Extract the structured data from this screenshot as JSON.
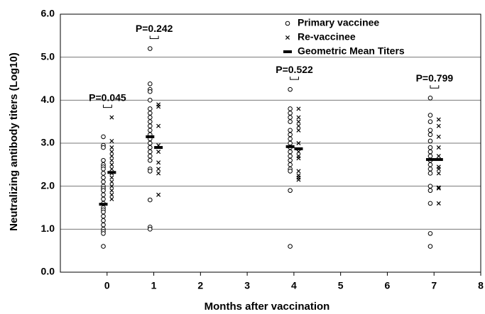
{
  "chart_data": {
    "type": "scatter",
    "xlabel": "Months after vaccination",
    "ylabel": "Neutralizing antibody titers (Log10)",
    "xlim": [
      -1,
      8
    ],
    "ylim": [
      0,
      6
    ],
    "xticks": [
      0,
      1,
      2,
      3,
      4,
      5,
      6,
      7,
      8
    ],
    "yticks": [
      {
        "value": 0,
        "label": "0.0"
      },
      {
        "value": 1,
        "label": "1.0"
      },
      {
        "value": 2,
        "label": "2.0"
      },
      {
        "value": 3,
        "label": "3.0"
      },
      {
        "value": 4,
        "label": "4.0"
      },
      {
        "value": 5,
        "label": "5.0"
      },
      {
        "value": 6,
        "label": "6.0"
      }
    ],
    "grid": true,
    "legend": "top-right",
    "series": [
      {
        "name": "Primary vaccinee",
        "marker": "circle",
        "color": "#000000",
        "groups": [
          {
            "x": -0.08,
            "values": [
              3.15,
              2.95,
              2.9,
              2.6,
              2.5,
              2.45,
              2.4,
              2.3,
              2.2,
              2.1,
              2.0,
              1.95,
              1.9,
              1.8,
              1.7,
              1.6,
              1.5,
              1.45,
              1.4,
              1.3,
              1.2,
              1.1,
              1.0,
              0.95,
              0.9,
              0.6
            ]
          },
          {
            "x": 0.92,
            "values": [
              5.2,
              4.38,
              4.25,
              4.2,
              4.0,
              3.8,
              3.7,
              3.6,
              3.5,
              3.4,
              3.3,
              3.2,
              3.1,
              3.0,
              2.9,
              2.8,
              2.7,
              2.6,
              2.4,
              2.35,
              1.68,
              1.05,
              1.0
            ]
          },
          {
            "x": 3.92,
            "values": [
              4.25,
              3.8,
              3.7,
              3.6,
              3.5,
              3.3,
              3.2,
              3.1,
              3.0,
              2.9,
              2.8,
              2.7,
              2.6,
              2.5,
              2.4,
              2.35,
              1.9,
              0.6
            ]
          },
          {
            "x": 6.92,
            "values": [
              4.05,
              3.65,
              3.5,
              3.3,
              3.2,
              3.05,
              2.9,
              2.8,
              2.7,
              2.6,
              2.5,
              2.4,
              2.3,
              2.0,
              1.9,
              1.6,
              0.9,
              0.6
            ]
          }
        ]
      },
      {
        "name": "Re-vaccinee",
        "marker": "cross",
        "color": "#000000",
        "groups": [
          {
            "x": 0.1,
            "values": [
              3.6,
              3.05,
              2.9,
              2.8,
              2.7,
              2.6,
              2.5,
              2.4,
              2.3,
              2.2,
              2.1,
              2.0,
              1.9,
              1.8,
              1.7
            ]
          },
          {
            "x": 1.1,
            "values": [
              3.9,
              3.85,
              3.4,
              2.95,
              2.8,
              2.55,
              2.4,
              2.3,
              1.8
            ]
          },
          {
            "x": 4.1,
            "values": [
              3.8,
              3.6,
              3.5,
              3.4,
              3.3,
              3.0,
              2.8,
              2.7,
              2.65,
              2.35,
              2.25,
              2.2,
              2.15
            ]
          },
          {
            "x": 7.1,
            "values": [
              3.55,
              3.4,
              3.15,
              2.9,
              2.7,
              2.45,
              2.4,
              2.3,
              1.97,
              1.95,
              1.6
            ]
          }
        ]
      },
      {
        "name": "Geometric Mean Titers",
        "marker": "bar",
        "color": "#000000",
        "groups": [
          {
            "x": -0.08,
            "values": [
              1.58
            ]
          },
          {
            "x": 0.1,
            "values": [
              2.32
            ]
          },
          {
            "x": 0.92,
            "values": [
              3.15
            ]
          },
          {
            "x": 1.1,
            "values": [
              2.9
            ]
          },
          {
            "x": 3.92,
            "values": [
              2.92
            ]
          },
          {
            "x": 4.1,
            "values": [
              2.87
            ]
          },
          {
            "x": 6.92,
            "values": [
              2.62
            ]
          },
          {
            "x": 7.1,
            "values": [
              2.62
            ]
          }
        ]
      }
    ],
    "annotations": [
      "P=0.045",
      "P=0.242",
      "P=0.522",
      "P=0.799"
    ]
  }
}
